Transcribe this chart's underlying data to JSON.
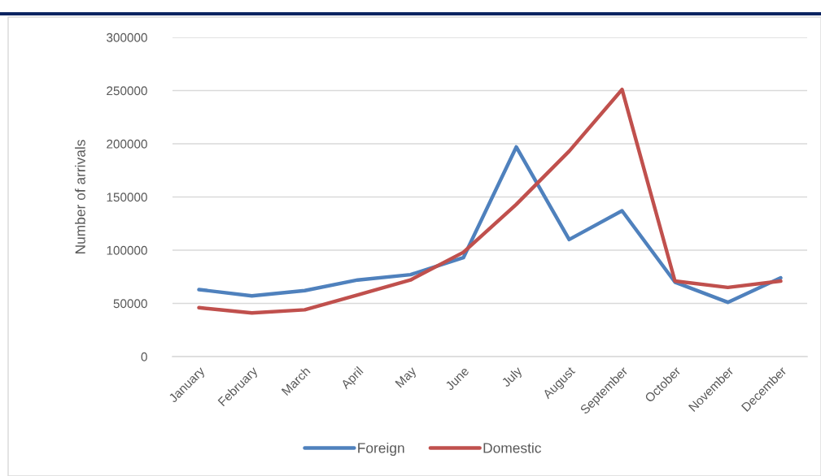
{
  "chart_data": {
    "type": "line",
    "categories": [
      "January",
      "February",
      "March",
      "April",
      "May",
      "June",
      "July",
      "August",
      "September",
      "October",
      "November",
      "December"
    ],
    "series": [
      {
        "name": "Foreign",
        "color": "#4f81bd",
        "values": [
          63000,
          57000,
          62000,
          72000,
          77000,
          93000,
          197000,
          110000,
          137000,
          70000,
          51000,
          74000
        ]
      },
      {
        "name": "Domestic",
        "color": "#c0504d",
        "values": [
          46000,
          41000,
          44000,
          58000,
          72000,
          98000,
          143000,
          193000,
          251000,
          71000,
          65000,
          71000
        ]
      }
    ],
    "ylabel": "Number of arrivals",
    "ylim": [
      0,
      300000
    ],
    "yticks": [
      0,
      50000,
      100000,
      150000,
      200000,
      250000,
      300000
    ],
    "grid": "y",
    "legend": "bottom",
    "marker": "none",
    "line_style": "solid"
  }
}
